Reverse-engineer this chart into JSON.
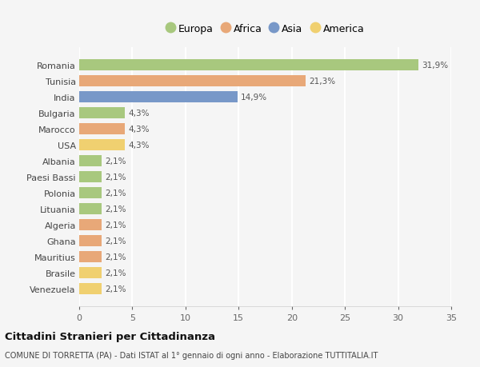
{
  "countries": [
    "Romania",
    "Tunisia",
    "India",
    "Bulgaria",
    "Marocco",
    "USA",
    "Albania",
    "Paesi Bassi",
    "Polonia",
    "Lituania",
    "Algeria",
    "Ghana",
    "Mauritius",
    "Brasile",
    "Venezuela"
  ],
  "values": [
    31.9,
    21.3,
    14.9,
    4.3,
    4.3,
    4.3,
    2.1,
    2.1,
    2.1,
    2.1,
    2.1,
    2.1,
    2.1,
    2.1,
    2.1
  ],
  "labels": [
    "31,9%",
    "21,3%",
    "14,9%",
    "4,3%",
    "4,3%",
    "4,3%",
    "2,1%",
    "2,1%",
    "2,1%",
    "2,1%",
    "2,1%",
    "2,1%",
    "2,1%",
    "2,1%",
    "2,1%"
  ],
  "continents": [
    "Europa",
    "Africa",
    "Asia",
    "Europa",
    "Africa",
    "America",
    "Europa",
    "Europa",
    "Europa",
    "Europa",
    "Africa",
    "Africa",
    "Africa",
    "America",
    "America"
  ],
  "colors": {
    "Europa": "#a8c87e",
    "Africa": "#e8a878",
    "Asia": "#7898c8",
    "America": "#f0d070"
  },
  "legend_order": [
    "Europa",
    "Africa",
    "Asia",
    "America"
  ],
  "title": "Cittadini Stranieri per Cittadinanza",
  "subtitle": "COMUNE DI TORRETTA (PA) - Dati ISTAT al 1° gennaio di ogni anno - Elaborazione TUTTITALIA.IT",
  "xlim": [
    0,
    35
  ],
  "xticks": [
    0,
    5,
    10,
    15,
    20,
    25,
    30,
    35
  ],
  "background_color": "#f5f5f5",
  "grid_color": "#ffffff"
}
